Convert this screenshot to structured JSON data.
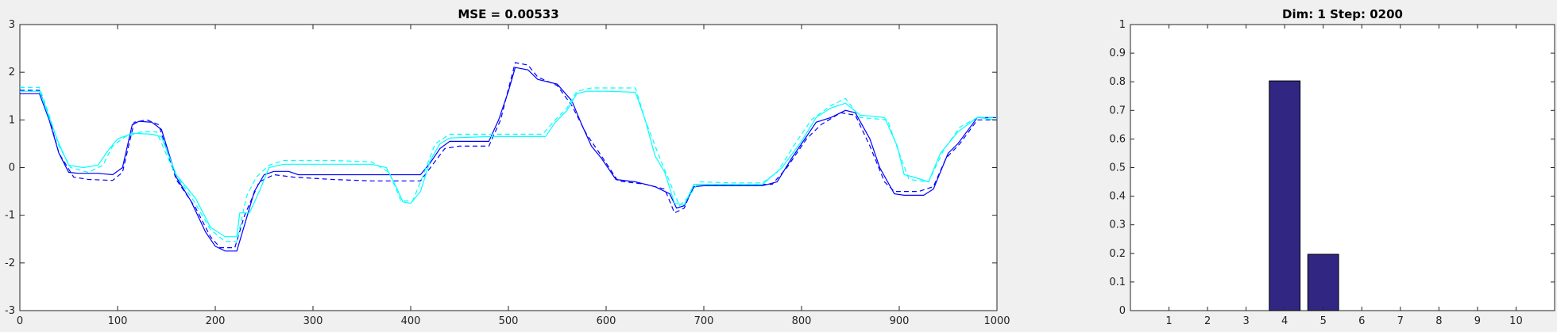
{
  "chart_data": [
    {
      "type": "line",
      "title": "MSE = 0.00533",
      "xlabel": "",
      "ylabel": "",
      "xlim": [
        0,
        1000
      ],
      "ylim": [
        -3,
        3
      ],
      "xticks": [
        0,
        100,
        200,
        300,
        400,
        500,
        600,
        700,
        800,
        900,
        1000
      ],
      "yticks": [
        -3,
        -2,
        -1,
        0,
        1,
        2,
        3
      ],
      "grid": false,
      "series": [
        {
          "color": "#0000ff",
          "linestyle": "solid",
          "points": [
            [
              0,
              1.55
            ],
            [
              20,
              1.55
            ],
            [
              30,
              1.0
            ],
            [
              40,
              0.3
            ],
            [
              50,
              -0.1
            ],
            [
              60,
              -0.12
            ],
            [
              80,
              -0.12
            ],
            [
              95,
              -0.15
            ],
            [
              105,
              0.0
            ],
            [
              115,
              0.9
            ],
            [
              122,
              0.97
            ],
            [
              135,
              0.95
            ],
            [
              145,
              0.8
            ],
            [
              160,
              -0.2
            ],
            [
              175,
              -0.7
            ],
            [
              190,
              -1.35
            ],
            [
              200,
              -1.65
            ],
            [
              210,
              -1.75
            ],
            [
              222,
              -1.75
            ],
            [
              230,
              -1.2
            ],
            [
              240,
              -0.5
            ],
            [
              250,
              -0.15
            ],
            [
              260,
              -0.08
            ],
            [
              275,
              -0.08
            ],
            [
              285,
              -0.15
            ],
            [
              320,
              -0.15
            ],
            [
              360,
              -0.15
            ],
            [
              380,
              -0.15
            ],
            [
              410,
              -0.15
            ],
            [
              420,
              0.1
            ],
            [
              430,
              0.4
            ],
            [
              440,
              0.55
            ],
            [
              480,
              0.55
            ],
            [
              490,
              1.0
            ],
            [
              500,
              1.6
            ],
            [
              507,
              2.1
            ],
            [
              520,
              2.05
            ],
            [
              530,
              1.85
            ],
            [
              550,
              1.75
            ],
            [
              565,
              1.4
            ],
            [
              575,
              0.9
            ],
            [
              585,
              0.45
            ],
            [
              595,
              0.2
            ],
            [
              610,
              -0.25
            ],
            [
              630,
              -0.3
            ],
            [
              650,
              -0.4
            ],
            [
              665,
              -0.55
            ],
            [
              672,
              -0.85
            ],
            [
              680,
              -0.8
            ],
            [
              690,
              -0.4
            ],
            [
              700,
              -0.38
            ],
            [
              730,
              -0.38
            ],
            [
              760,
              -0.38
            ],
            [
              775,
              -0.3
            ],
            [
              790,
              0.2
            ],
            [
              805,
              0.65
            ],
            [
              815,
              0.95
            ],
            [
              830,
              1.05
            ],
            [
              845,
              1.2
            ],
            [
              855,
              1.15
            ],
            [
              870,
              0.6
            ],
            [
              880,
              0.0
            ],
            [
              895,
              -0.55
            ],
            [
              905,
              -0.58
            ],
            [
              925,
              -0.58
            ],
            [
              935,
              -0.45
            ],
            [
              950,
              0.3
            ],
            [
              960,
              0.5
            ],
            [
              980,
              1.05
            ],
            [
              1000,
              1.05
            ]
          ]
        },
        {
          "color": "#0000ff",
          "linestyle": "dashed",
          "points": [
            [
              0,
              1.62
            ],
            [
              20,
              1.62
            ],
            [
              30,
              1.05
            ],
            [
              40,
              0.3
            ],
            [
              55,
              -0.2
            ],
            [
              70,
              -0.25
            ],
            [
              95,
              -0.27
            ],
            [
              105,
              -0.1
            ],
            [
              117,
              0.95
            ],
            [
              130,
              1.0
            ],
            [
              142,
              0.9
            ],
            [
              160,
              -0.25
            ],
            [
              180,
              -0.85
            ],
            [
              195,
              -1.45
            ],
            [
              205,
              -1.68
            ],
            [
              220,
              -1.68
            ],
            [
              230,
              -1.0
            ],
            [
              245,
              -0.3
            ],
            [
              260,
              -0.15
            ],
            [
              280,
              -0.2
            ],
            [
              320,
              -0.25
            ],
            [
              360,
              -0.28
            ],
            [
              410,
              -0.28
            ],
            [
              422,
              0.05
            ],
            [
              435,
              0.4
            ],
            [
              450,
              0.45
            ],
            [
              480,
              0.45
            ],
            [
              492,
              1.0
            ],
            [
              500,
              1.65
            ],
            [
              507,
              2.2
            ],
            [
              520,
              2.15
            ],
            [
              530,
              1.9
            ],
            [
              550,
              1.72
            ],
            [
              565,
              1.3
            ],
            [
              580,
              0.7
            ],
            [
              595,
              0.25
            ],
            [
              612,
              -0.28
            ],
            [
              640,
              -0.35
            ],
            [
              660,
              -0.45
            ],
            [
              670,
              -0.95
            ],
            [
              680,
              -0.85
            ],
            [
              690,
              -0.35
            ],
            [
              730,
              -0.35
            ],
            [
              770,
              -0.35
            ],
            [
              785,
              0.0
            ],
            [
              805,
              0.6
            ],
            [
              820,
              0.9
            ],
            [
              840,
              1.15
            ],
            [
              855,
              1.1
            ],
            [
              870,
              0.45
            ],
            [
              885,
              -0.3
            ],
            [
              895,
              -0.5
            ],
            [
              920,
              -0.5
            ],
            [
              935,
              -0.4
            ],
            [
              948,
              0.2
            ],
            [
              962,
              0.5
            ],
            [
              980,
              1.0
            ],
            [
              1000,
              1.0
            ]
          ]
        },
        {
          "color": "#00ffff",
          "linestyle": "solid",
          "points": [
            [
              0,
              1.6
            ],
            [
              20,
              1.6
            ],
            [
              30,
              1.05
            ],
            [
              40,
              0.5
            ],
            [
              50,
              0.05
            ],
            [
              65,
              0.0
            ],
            [
              80,
              0.05
            ],
            [
              90,
              0.35
            ],
            [
              100,
              0.6
            ],
            [
              115,
              0.72
            ],
            [
              135,
              0.7
            ],
            [
              145,
              0.65
            ],
            [
              160,
              -0.15
            ],
            [
              180,
              -0.65
            ],
            [
              195,
              -1.25
            ],
            [
              210,
              -1.45
            ],
            [
              222,
              -1.45
            ],
            [
              225,
              -0.95
            ],
            [
              235,
              -0.95
            ],
            [
              245,
              -0.5
            ],
            [
              255,
              0.0
            ],
            [
              270,
              0.07
            ],
            [
              320,
              0.07
            ],
            [
              360,
              0.07
            ],
            [
              375,
              0.0
            ],
            [
              385,
              -0.4
            ],
            [
              392,
              -0.72
            ],
            [
              400,
              -0.75
            ],
            [
              410,
              -0.5
            ],
            [
              420,
              0.15
            ],
            [
              430,
              0.5
            ],
            [
              440,
              0.62
            ],
            [
              480,
              0.65
            ],
            [
              530,
              0.65
            ],
            [
              538,
              0.65
            ],
            [
              548,
              0.95
            ],
            [
              560,
              1.2
            ],
            [
              570,
              1.55
            ],
            [
              580,
              1.6
            ],
            [
              600,
              1.6
            ],
            [
              630,
              1.58
            ],
            [
              640,
              1.0
            ],
            [
              650,
              0.25
            ],
            [
              660,
              -0.1
            ],
            [
              670,
              -0.75
            ],
            [
              680,
              -0.78
            ],
            [
              690,
              -0.35
            ],
            [
              720,
              -0.35
            ],
            [
              760,
              -0.35
            ],
            [
              780,
              0.0
            ],
            [
              800,
              0.55
            ],
            [
              815,
              1.05
            ],
            [
              830,
              1.25
            ],
            [
              845,
              1.35
            ],
            [
              860,
              1.1
            ],
            [
              885,
              1.05
            ],
            [
              898,
              0.45
            ],
            [
              905,
              -0.15
            ],
            [
              915,
              -0.2
            ],
            [
              930,
              -0.3
            ],
            [
              942,
              0.3
            ],
            [
              960,
              0.75
            ],
            [
              980,
              1.05
            ],
            [
              1000,
              1.0
            ]
          ]
        },
        {
          "color": "#00ffff",
          "linestyle": "dashed",
          "points": [
            [
              0,
              1.68
            ],
            [
              20,
              1.68
            ],
            [
              30,
              1.1
            ],
            [
              40,
              0.45
            ],
            [
              52,
              0.0
            ],
            [
              70,
              -0.1
            ],
            [
              85,
              0.05
            ],
            [
              95,
              0.45
            ],
            [
              108,
              0.65
            ],
            [
              125,
              0.75
            ],
            [
              140,
              0.75
            ],
            [
              158,
              -0.1
            ],
            [
              178,
              -0.7
            ],
            [
              195,
              -1.3
            ],
            [
              210,
              -1.55
            ],
            [
              222,
              -1.55
            ],
            [
              232,
              -0.6
            ],
            [
              242,
              -0.2
            ],
            [
              255,
              0.05
            ],
            [
              270,
              0.15
            ],
            [
              320,
              0.15
            ],
            [
              360,
              0.12
            ],
            [
              378,
              -0.1
            ],
            [
              390,
              -0.7
            ],
            [
              402,
              -0.7
            ],
            [
              412,
              -0.2
            ],
            [
              425,
              0.5
            ],
            [
              440,
              0.7
            ],
            [
              480,
              0.7
            ],
            [
              535,
              0.7
            ],
            [
              548,
              1.0
            ],
            [
              560,
              1.25
            ],
            [
              570,
              1.6
            ],
            [
              585,
              1.67
            ],
            [
              630,
              1.67
            ],
            [
              640,
              1.0
            ],
            [
              655,
              0.2
            ],
            [
              665,
              -0.3
            ],
            [
              675,
              -0.8
            ],
            [
              685,
              -0.6
            ],
            [
              695,
              -0.3
            ],
            [
              730,
              -0.32
            ],
            [
              760,
              -0.32
            ],
            [
              775,
              -0.1
            ],
            [
              795,
              0.55
            ],
            [
              810,
              1.0
            ],
            [
              830,
              1.3
            ],
            [
              845,
              1.45
            ],
            [
              860,
              1.05
            ],
            [
              888,
              1.0
            ],
            [
              900,
              0.3
            ],
            [
              910,
              -0.25
            ],
            [
              930,
              -0.3
            ],
            [
              945,
              0.35
            ],
            [
              962,
              0.85
            ],
            [
              980,
              1.05
            ],
            [
              1000,
              1.05
            ]
          ]
        }
      ]
    },
    {
      "type": "bar",
      "title": "Dim: 1  Step: 0200",
      "xlabel": "",
      "ylabel": "",
      "categories": [
        "1",
        "2",
        "3",
        "4",
        "5",
        "6",
        "7",
        "8",
        "9",
        "10"
      ],
      "values": [
        0,
        0,
        0,
        0.803,
        0.197,
        0,
        0,
        0,
        0,
        0
      ],
      "xlim": [
        0,
        11
      ],
      "ylim": [
        0,
        1
      ],
      "yticks": [
        0,
        0.1,
        0.2,
        0.3,
        0.4,
        0.5,
        0.6,
        0.7,
        0.8,
        0.9,
        1
      ],
      "grid": false,
      "color": "#312783"
    }
  ]
}
